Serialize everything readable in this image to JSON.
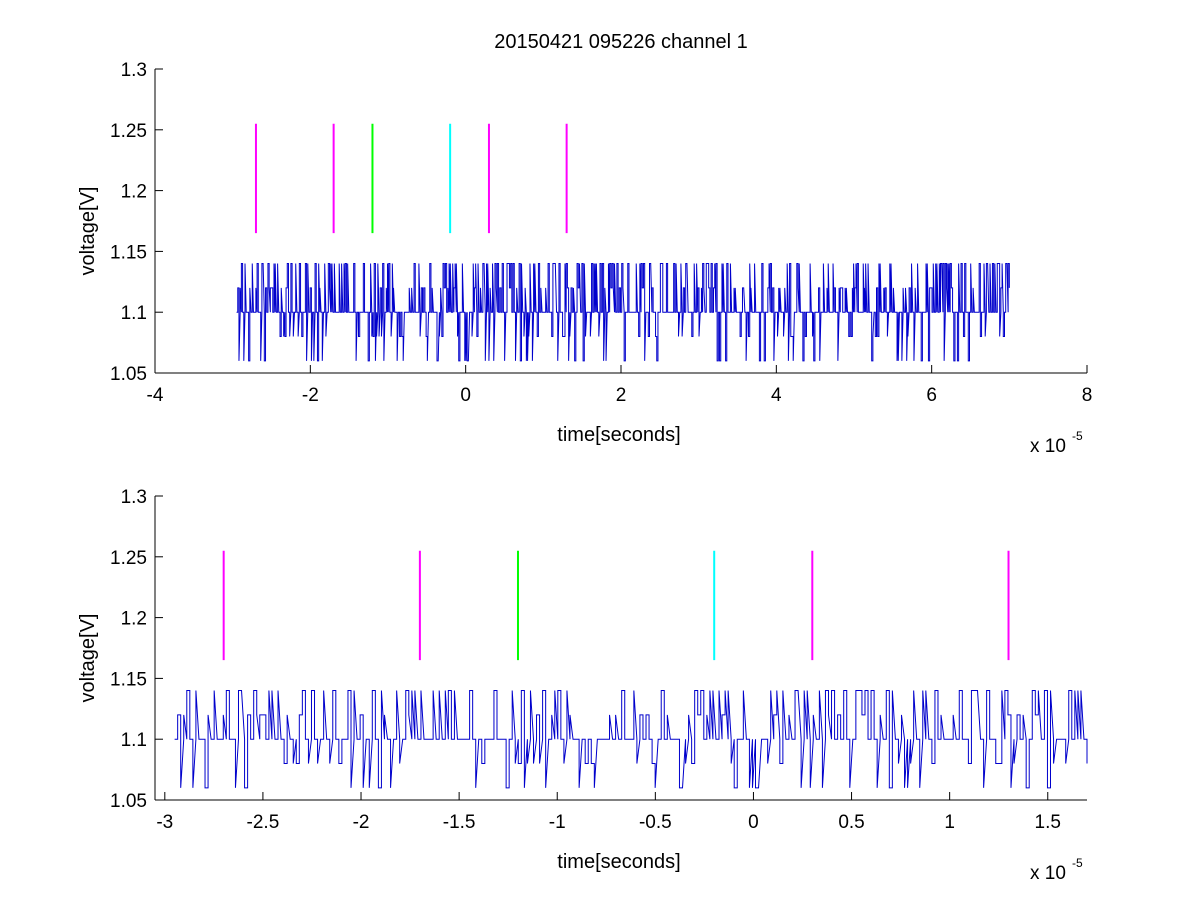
{
  "figure": {
    "title": "20150421 095226 channel 1"
  },
  "chart_data": [
    {
      "type": "line",
      "title": "20150421 095226 channel 1",
      "xlabel": "time[seconds]",
      "ylabel": "voltage[V]",
      "x_multiplier": "x 10",
      "x_multiplier_exp": "-5",
      "xlim": [
        -4,
        8
      ],
      "ylim": [
        1.05,
        1.3
      ],
      "xticks": [
        -4,
        -2,
        0,
        2,
        4,
        6,
        8
      ],
      "xtick_labels": [
        "-4",
        "-2",
        "0",
        "2",
        "4",
        "6",
        "8"
      ],
      "yticks": [
        1.05,
        1.1,
        1.15,
        1.2,
        1.25,
        1.3
      ],
      "ytick_labels": [
        "1.05",
        "1.1",
        "1.15",
        "1.2",
        "1.25",
        "1.3"
      ],
      "grid": false,
      "signal": {
        "color": "#0000cc",
        "x_range": [
          -2.95,
          7.0
        ],
        "levels": [
          1.06,
          1.08,
          1.1,
          1.12,
          1.14
        ],
        "baseline": 1.1,
        "segments": 640
      },
      "markers": [
        {
          "x": -2.7,
          "color": "#ff00ff",
          "y_range": [
            1.165,
            1.255
          ]
        },
        {
          "x": -1.7,
          "color": "#ff00ff",
          "y_range": [
            1.165,
            1.255
          ]
        },
        {
          "x": -1.2,
          "color": "#00ff00",
          "y_range": [
            1.165,
            1.255
          ]
        },
        {
          "x": -0.2,
          "color": "#00ffff",
          "y_range": [
            1.165,
            1.255
          ]
        },
        {
          "x": 0.3,
          "color": "#ff00ff",
          "y_range": [
            1.165,
            1.255
          ]
        },
        {
          "x": 1.3,
          "color": "#ff00ff",
          "y_range": [
            1.165,
            1.255
          ]
        }
      ]
    },
    {
      "type": "line",
      "title": "",
      "xlabel": "time[seconds]",
      "ylabel": "voltage[V]",
      "x_multiplier": "x 10",
      "x_multiplier_exp": "-5",
      "xlim": [
        -3.05,
        1.7
      ],
      "ylim": [
        1.05,
        1.3
      ],
      "xticks": [
        -3,
        -2.5,
        -2,
        -1.5,
        -1,
        -0.5,
        0,
        0.5,
        1,
        1.5
      ],
      "xtick_labels": [
        "-3",
        "-2.5",
        "-2",
        "-1.5",
        "-1",
        "-0.5",
        "0",
        "0.5",
        "1",
        "1.5"
      ],
      "yticks": [
        1.05,
        1.1,
        1.15,
        1.2,
        1.25,
        1.3
      ],
      "ytick_labels": [
        "1.05",
        "1.1",
        "1.15",
        "1.2",
        "1.25",
        "1.3"
      ],
      "grid": false,
      "signal": {
        "color": "#0000cc",
        "x_range": [
          -2.95,
          1.7
        ],
        "levels": [
          1.06,
          1.08,
          1.1,
          1.12,
          1.14
        ],
        "baseline": 1.1,
        "segments": 300
      },
      "markers": [
        {
          "x": -2.7,
          "color": "#ff00ff",
          "y_range": [
            1.165,
            1.255
          ]
        },
        {
          "x": -1.7,
          "color": "#ff00ff",
          "y_range": [
            1.165,
            1.255
          ]
        },
        {
          "x": -1.2,
          "color": "#00ff00",
          "y_range": [
            1.165,
            1.255
          ]
        },
        {
          "x": -0.2,
          "color": "#00ffff",
          "y_range": [
            1.165,
            1.255
          ]
        },
        {
          "x": 0.3,
          "color": "#ff00ff",
          "y_range": [
            1.165,
            1.255
          ]
        },
        {
          "x": 1.3,
          "color": "#ff00ff",
          "y_range": [
            1.165,
            1.255
          ]
        }
      ]
    }
  ]
}
